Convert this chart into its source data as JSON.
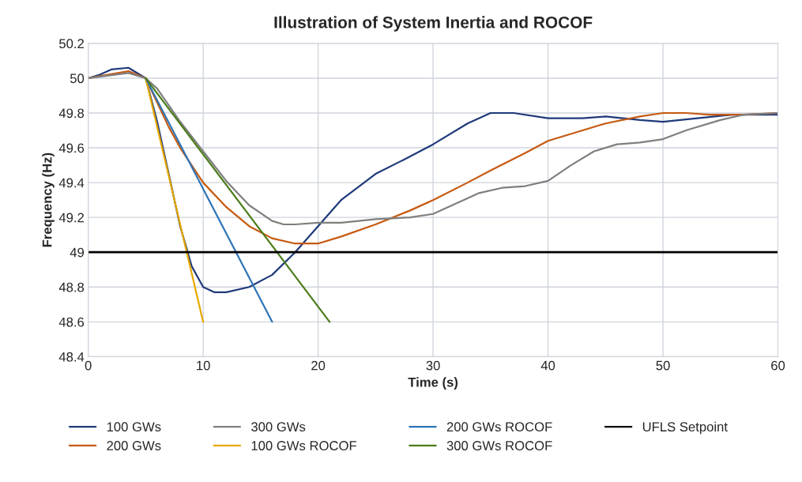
{
  "chart_data": {
    "type": "line",
    "title": "Illustration of System Inertia and ROCOF",
    "xlabel": "Time (s)",
    "ylabel": "Frequency (Hz)",
    "xlim": [
      0,
      60
    ],
    "xticks": [
      0,
      10,
      20,
      30,
      40,
      50,
      60
    ],
    "ylim": [
      48.4,
      50.2
    ],
    "yticks": [
      48.4,
      48.6,
      48.8,
      49,
      49.2,
      49.4,
      49.6,
      49.8,
      50,
      50.2
    ],
    "grid": true,
    "legend": "bottom",
    "marker": "none",
    "line_style": "solid",
    "series": [
      {
        "name": "100 GWs",
        "color": "#1f3a7a",
        "x": [
          0,
          1,
          2,
          3.5,
          5,
          6,
          7,
          8,
          9,
          10,
          11,
          12,
          14,
          16,
          18,
          20,
          22,
          25,
          28,
          30,
          33,
          35,
          37,
          40,
          43,
          45,
          48,
          50,
          53,
          56,
          60
        ],
        "values": [
          50,
          50.02,
          50.05,
          50.06,
          50.0,
          49.75,
          49.45,
          49.15,
          48.92,
          48.8,
          48.77,
          48.77,
          48.8,
          48.87,
          49.0,
          49.15,
          49.3,
          49.45,
          49.55,
          49.62,
          49.74,
          49.8,
          49.8,
          49.77,
          49.77,
          49.78,
          49.76,
          49.75,
          49.77,
          49.79,
          49.79
        ]
      },
      {
        "name": "200 GWs",
        "color": "#c55a11",
        "x": [
          0,
          3.5,
          5,
          7,
          8,
          10,
          12,
          14,
          16,
          18,
          20,
          22,
          25,
          28,
          30,
          33,
          35,
          38,
          40,
          43,
          45,
          48,
          50,
          52,
          54,
          57,
          60
        ],
        "values": [
          50,
          50.04,
          50.0,
          49.72,
          49.6,
          49.4,
          49.26,
          49.15,
          49.08,
          49.05,
          49.05,
          49.09,
          49.16,
          49.24,
          49.3,
          49.4,
          49.47,
          49.57,
          49.64,
          49.7,
          49.74,
          49.78,
          49.8,
          49.8,
          49.79,
          49.79,
          49.8
        ]
      },
      {
        "name": "300 GWs",
        "color": "#7f7f7f",
        "x": [
          0,
          3.5,
          5,
          6,
          8,
          10,
          12,
          14,
          16,
          17,
          18,
          20,
          22,
          25,
          28,
          30,
          32,
          34,
          36,
          38,
          40,
          42,
          44,
          46,
          48,
          50,
          52,
          55,
          57,
          60
        ],
        "values": [
          50,
          50.03,
          50,
          49.94,
          49.75,
          49.58,
          49.41,
          49.27,
          49.18,
          49.16,
          49.16,
          49.17,
          49.17,
          49.19,
          49.2,
          49.22,
          49.28,
          49.34,
          49.37,
          49.38,
          49.41,
          49.5,
          49.58,
          49.62,
          49.63,
          49.65,
          49.7,
          49.76,
          49.79,
          49.8
        ]
      },
      {
        "name": "100 GWs ROCOF",
        "color": "#e6a800",
        "x": [
          5,
          10
        ],
        "values": [
          50,
          48.6
        ]
      },
      {
        "name": "200 GWs ROCOF",
        "color": "#2e75b6",
        "x": [
          5,
          16
        ],
        "values": [
          50,
          48.6
        ]
      },
      {
        "name": "300 GWs ROCOF",
        "color": "#4b7d1b",
        "x": [
          5,
          21
        ],
        "values": [
          50,
          48.6
        ]
      },
      {
        "name": "UFLS Setpoint",
        "color": "#000000",
        "x": [
          0,
          60
        ],
        "values": [
          49,
          49
        ]
      }
    ]
  }
}
